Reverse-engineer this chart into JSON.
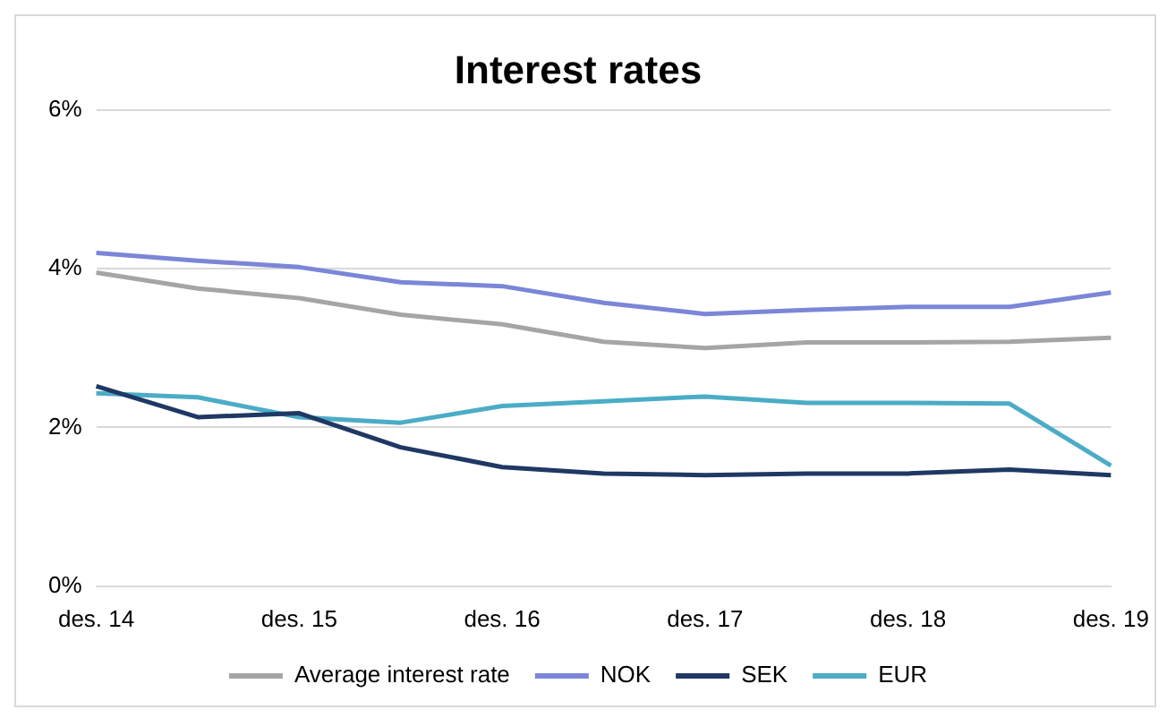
{
  "chart_data": {
    "type": "line",
    "title": "Interest rates",
    "categories": [
      "des. 14",
      null,
      "des. 15",
      null,
      "des. 16",
      null,
      "des. 17",
      null,
      "des. 18",
      null,
      "des. 19"
    ],
    "series": [
      {
        "name": "Average interest rate",
        "color": "#a5a5a5",
        "values": [
          3.95,
          3.75,
          3.63,
          3.42,
          3.3,
          3.08,
          3.0,
          3.07,
          3.07,
          3.08,
          3.13
        ]
      },
      {
        "name": "NOK",
        "color": "#7b86d8",
        "values": [
          4.2,
          4.1,
          4.02,
          3.83,
          3.78,
          3.57,
          3.43,
          3.48,
          3.52,
          3.52,
          3.7
        ]
      },
      {
        "name": "SEK",
        "color": "#1f3864",
        "values": [
          2.52,
          2.13,
          2.18,
          1.75,
          1.5,
          1.42,
          1.4,
          1.42,
          1.42,
          1.47,
          1.4
        ]
      },
      {
        "name": "EUR",
        "color": "#4bacc6",
        "values": [
          2.43,
          2.38,
          2.13,
          2.06,
          2.27,
          2.33,
          2.39,
          2.31,
          2.31,
          2.3,
          1.52
        ]
      }
    ],
    "ylim": [
      0,
      6
    ],
    "yticks": [
      {
        "value": 0,
        "label": "0%"
      },
      {
        "value": 2,
        "label": "2%"
      },
      {
        "value": 4,
        "label": "4%"
      },
      {
        "value": 6,
        "label": "6%"
      }
    ],
    "grid": "y",
    "legend": "bottom",
    "marker": "none",
    "line_style": "solid"
  }
}
